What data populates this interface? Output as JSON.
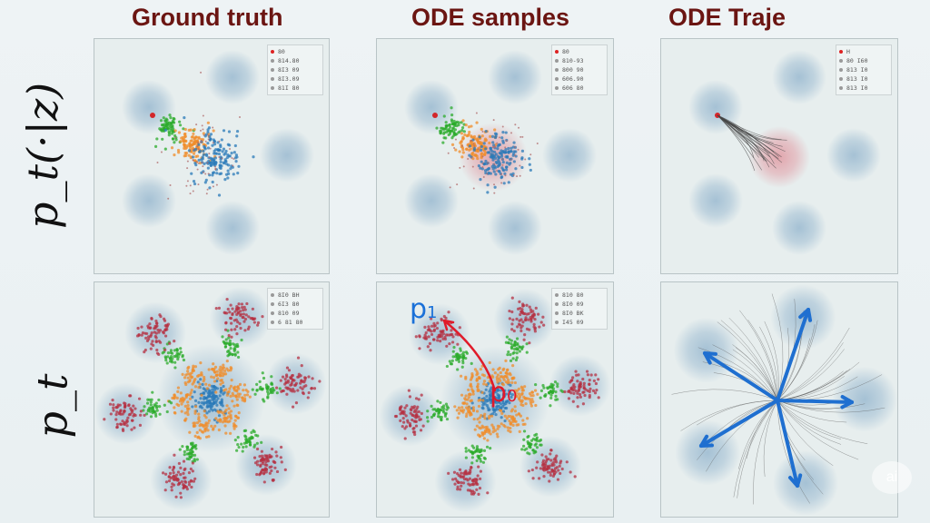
{
  "titles": {
    "ground_truth": "Ground truth",
    "ode_samples": "ODE samples",
    "ode_traje": "ODE Traje"
  },
  "row_labels": {
    "top": "p_t(·|z)",
    "bottom": "p_t"
  },
  "legend": {
    "top_left": [
      "80",
      "814.80",
      "8I3 09",
      "8I3.09",
      "81I 80"
    ],
    "top_mid": [
      "80",
      "810-93",
      "800 90",
      "606.90",
      "606 80"
    ],
    "top_right": [
      "H",
      "80 I60",
      "813 I0",
      "813 I0",
      "813 I0"
    ],
    "bottom_left": [
      "8I0 BH",
      "6I3 80",
      "810 09",
      "6 81 80"
    ],
    "bottom_mid": [
      "810 80",
      "8I0 09",
      "8I0 BK",
      "I45 09"
    ]
  },
  "annotations": {
    "p1_main": "p",
    "p1_sub": "1",
    "p0_main": "p",
    "p0_sub": "0"
  },
  "watermark": "ai",
  "colors": {
    "title": "#6b1512",
    "gaussian": "#8fb2cc",
    "green": "#2bab2b",
    "orange": "#f08c2a",
    "blue": "#2a7ab8",
    "red": "#b53041",
    "arrow_red": "#e01b2a",
    "arrow_blue": "#1f6fd0"
  }
}
